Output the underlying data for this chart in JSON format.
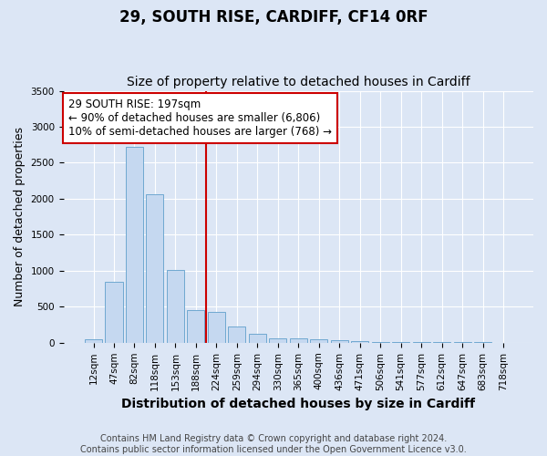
{
  "title": "29, SOUTH RISE, CARDIFF, CF14 0RF",
  "subtitle": "Size of property relative to detached houses in Cardiff",
  "xlabel": "Distribution of detached houses by size in Cardiff",
  "ylabel": "Number of detached properties",
  "categories": [
    "12sqm",
    "47sqm",
    "82sqm",
    "118sqm",
    "153sqm",
    "188sqm",
    "224sqm",
    "259sqm",
    "294sqm",
    "330sqm",
    "365sqm",
    "400sqm",
    "436sqm",
    "471sqm",
    "506sqm",
    "541sqm",
    "577sqm",
    "612sqm",
    "647sqm",
    "683sqm",
    "718sqm"
  ],
  "values": [
    50,
    850,
    2720,
    2060,
    1010,
    460,
    430,
    220,
    130,
    60,
    55,
    50,
    30,
    20,
    15,
    10,
    10,
    8,
    5,
    5,
    3
  ],
  "bar_color": "#c5d8f0",
  "bar_edge_color": "#6fa8d0",
  "vline_x": 5.5,
  "vline_color": "#cc0000",
  "annotation_text": "29 SOUTH RISE: 197sqm\n← 90% of detached houses are smaller (6,806)\n10% of semi-detached houses are larger (768) →",
  "annotation_box_color": "#ffffff",
  "annotation_box_edge": "#cc0000",
  "ylim": [
    0,
    3500
  ],
  "yticks": [
    0,
    500,
    1000,
    1500,
    2000,
    2500,
    3000,
    3500
  ],
  "background_color": "#dce6f5",
  "plot_bg_color": "#dce6f5",
  "grid_color": "#ffffff",
  "footer": "Contains HM Land Registry data © Crown copyright and database right 2024.\nContains public sector information licensed under the Open Government Licence v3.0.",
  "title_fontsize": 12,
  "subtitle_fontsize": 10,
  "xlabel_fontsize": 10,
  "ylabel_fontsize": 9,
  "tick_fontsize": 7.5,
  "annotation_fontsize": 8.5,
  "footer_fontsize": 7
}
